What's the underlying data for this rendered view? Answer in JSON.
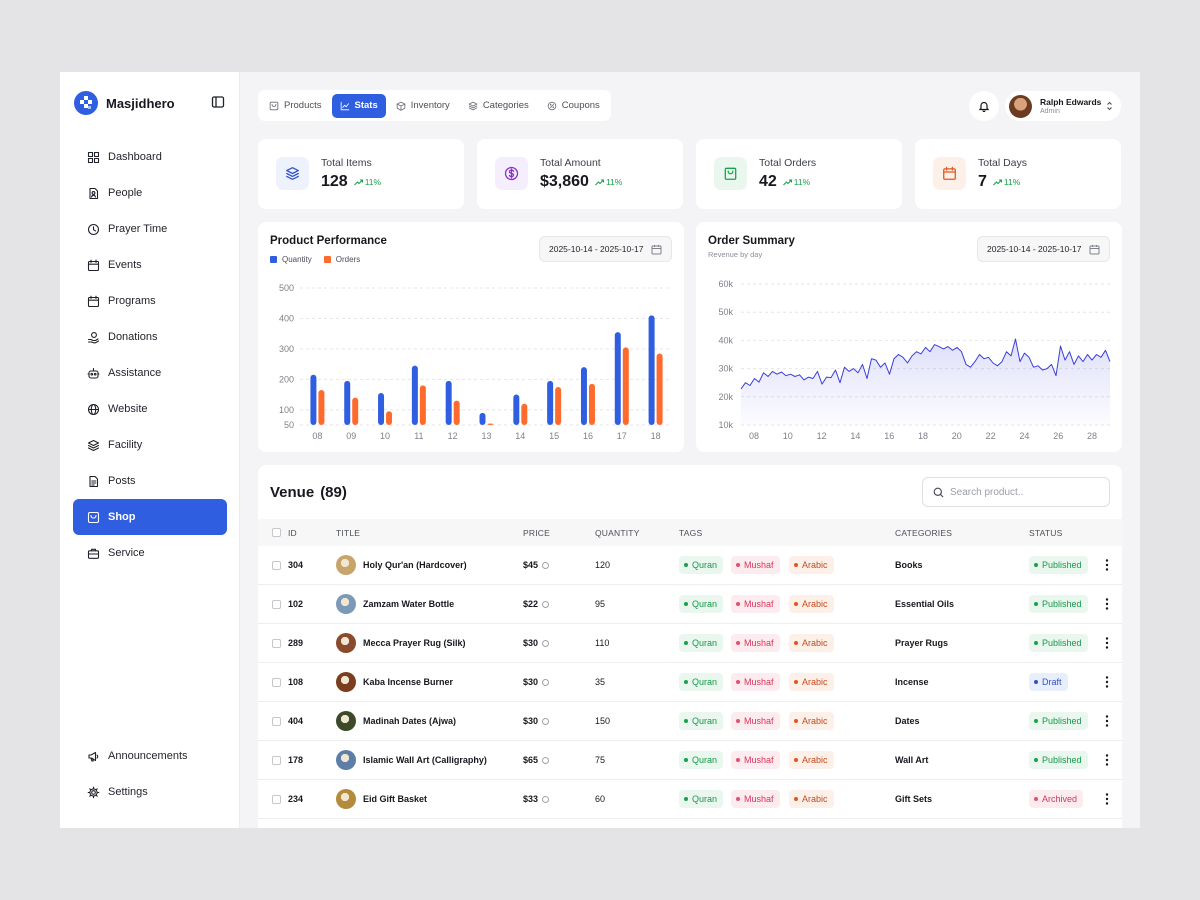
{
  "brand": {
    "name": "Masjidhero",
    "accent": "#2f5fe0"
  },
  "sidebar": {
    "items": [
      {
        "label": "Dashboard",
        "icon": "grid-icon"
      },
      {
        "label": "People",
        "icon": "person-card-icon"
      },
      {
        "label": "Prayer Time",
        "icon": "clock-icon"
      },
      {
        "label": "Events",
        "icon": "calendar-icon"
      },
      {
        "label": "Programs",
        "icon": "calendar-icon"
      },
      {
        "label": "Donations",
        "icon": "coin-hand-icon"
      },
      {
        "label": "Assistance",
        "icon": "robot-icon"
      },
      {
        "label": "Website",
        "icon": "globe-icon"
      },
      {
        "label": "Facility",
        "icon": "layers-icon"
      },
      {
        "label": "Posts",
        "icon": "document-icon"
      },
      {
        "label": "Shop",
        "icon": "shop-icon",
        "active": true
      },
      {
        "label": "Service",
        "icon": "briefcase-icon"
      }
    ],
    "bottom_items": [
      {
        "label": "Announcements",
        "icon": "megaphone-icon"
      },
      {
        "label": "Settings",
        "icon": "gear-icon"
      }
    ]
  },
  "tabs": [
    {
      "label": "Products",
      "icon": "shop-icon"
    },
    {
      "label": "Stats",
      "icon": "chart-line-icon",
      "active": true
    },
    {
      "label": "Inventory",
      "icon": "box-icon"
    },
    {
      "label": "Categories",
      "icon": "layers-icon"
    },
    {
      "label": "Coupons",
      "icon": "coupon-icon"
    }
  ],
  "user": {
    "name": "Ralph Edwards",
    "role": "Admin"
  },
  "stats": [
    {
      "label": "Total Items",
      "value": "128",
      "trend": "11%",
      "icon": "layers-icon",
      "color": "#2f52c8",
      "bg": "#eef2fd"
    },
    {
      "label": "Total Amount",
      "value": "$3,860",
      "trend": "11%",
      "icon": "dollar-circle-icon",
      "color": "#8a2fc8",
      "bg": "#f5eefd"
    },
    {
      "label": "Total Orders",
      "value": "42",
      "trend": "11%",
      "icon": "bag-icon",
      "color": "#1aa14b",
      "bg": "#eaf7ef"
    },
    {
      "label": "Total Days",
      "value": "7",
      "trend": "11%",
      "icon": "calendar-icon",
      "color": "#e0571f",
      "bg": "#fdf0e9"
    }
  ],
  "product_performance": {
    "title": "Product Performance",
    "date_range": "2025-10-14 - 2025-10-17",
    "legend": [
      "Quantity",
      "Orders"
    ]
  },
  "order_summary": {
    "title": "Order Summary",
    "subtitle": "Revenue by day",
    "date_range": "2025-10-14 - 2025-10-17"
  },
  "chart_data": [
    {
      "type": "bar",
      "title": "Product Performance",
      "categories": [
        "08",
        "09",
        "10",
        "11",
        "12",
        "13",
        "14",
        "15",
        "16",
        "17",
        "18"
      ],
      "series": [
        {
          "name": "Quantity",
          "color": "#2f5fe0",
          "values": [
            215,
            195,
            155,
            245,
            195,
            90,
            150,
            195,
            240,
            355,
            410
          ]
        },
        {
          "name": "Orders",
          "color": "#ff6b2c",
          "values": [
            165,
            140,
            95,
            180,
            130,
            55,
            120,
            175,
            185,
            305,
            285
          ]
        }
      ],
      "yticks": [
        50,
        100,
        200,
        300,
        400,
        500
      ],
      "ylim": [
        50,
        500
      ],
      "grid": true,
      "legend": "top-left"
    },
    {
      "type": "area",
      "title": "Order Summary",
      "subtitle": "Revenue by day",
      "series": [
        {
          "name": "Revenue",
          "color": "#3b3fd8",
          "values": [
            22800,
            25000,
            24000,
            26500,
            25200,
            28500,
            27200,
            29000,
            28000,
            28800,
            27500,
            28000,
            27200,
            27800,
            26000,
            27000,
            26500,
            29000,
            24500,
            27000,
            26800,
            29500,
            25000,
            30500,
            29000,
            30000,
            28500,
            31500,
            26500,
            33500,
            33000,
            30500,
            32000,
            28000,
            33500,
            35000,
            34000,
            32000,
            34500,
            36000,
            35200,
            37500,
            36000,
            38500,
            37800,
            37000,
            37800,
            36500,
            37500,
            36000,
            31500,
            30500,
            32500,
            35000,
            33500,
            34000,
            32000,
            31000,
            32500,
            36000,
            34500,
            40500,
            32500,
            35500,
            34000,
            30500,
            31000,
            29500,
            30000,
            31500,
            27500,
            38000,
            33000,
            36000,
            31500,
            34500,
            32500,
            35000,
            33000,
            35000,
            34000,
            36500,
            32500
          ]
        }
      ],
      "xticks": [
        "08",
        "10",
        "12",
        "14",
        "16",
        "18",
        "20",
        "22",
        "24",
        "26",
        "28"
      ],
      "yticks": [
        "10k",
        "20k",
        "30k",
        "40k",
        "50k",
        "60k"
      ],
      "ylim": [
        10000,
        60000
      ],
      "grid": true
    }
  ],
  "venue": {
    "title": "Venue",
    "count": "(89)",
    "search_placeholder": "Search product..",
    "columns": [
      "ID",
      "TITLE",
      "PRICE",
      "QUANTITY",
      "TAGS",
      "CATEGORIES",
      "STATUS"
    ],
    "rows": [
      {
        "id": "304",
        "title": "Holy Qur'an (Hardcover)",
        "price": "$45",
        "quantity": "120",
        "tags": [
          "Quran",
          "Mushaf",
          "Arabic"
        ],
        "category": "Books",
        "status": "Published",
        "thumb": "#c9a46a"
      },
      {
        "id": "102",
        "title": "Zamzam Water Bottle",
        "price": "$22",
        "quantity": "95",
        "tags": [
          "Quran",
          "Mushaf",
          "Arabic"
        ],
        "category": "Essential Oils",
        "status": "Published",
        "thumb": "#7c9ab8"
      },
      {
        "id": "289",
        "title": "Mecca Prayer Rug (Silk)",
        "price": "$30",
        "quantity": "110",
        "tags": [
          "Quran",
          "Mushaf",
          "Arabic"
        ],
        "category": "Prayer Rugs",
        "status": "Published",
        "thumb": "#8a4a2b"
      },
      {
        "id": "108",
        "title": "Kaba Incense Burner",
        "price": "$30",
        "quantity": "35",
        "tags": [
          "Quran",
          "Mushaf",
          "Arabic"
        ],
        "category": "Incense",
        "status": "Draft",
        "thumb": "#7a3e1f"
      },
      {
        "id": "404",
        "title": "Madinah Dates (Ajwa)",
        "price": "$30",
        "quantity": "150",
        "tags": [
          "Quran",
          "Mushaf",
          "Arabic"
        ],
        "category": "Dates",
        "status": "Published",
        "thumb": "#3d4a2a"
      },
      {
        "id": "178",
        "title": "Islamic Wall Art (Calligraphy)",
        "price": "$65",
        "quantity": "75",
        "tags": [
          "Quran",
          "Mushaf",
          "Arabic"
        ],
        "category": "Wall Art",
        "status": "Published",
        "thumb": "#5c7ea8"
      },
      {
        "id": "234",
        "title": "Eid Gift Basket",
        "price": "$33",
        "quantity": "60",
        "tags": [
          "Quran",
          "Mushaf",
          "Arabic"
        ],
        "category": "Gift Sets",
        "status": "Archived",
        "thumb": "#b48a3c"
      }
    ]
  }
}
